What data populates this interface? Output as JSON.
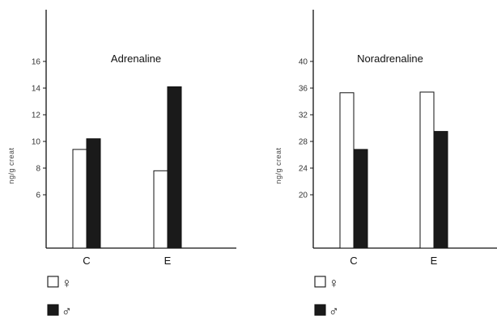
{
  "chart_data": [
    {
      "type": "bar",
      "title": "Adrenaline",
      "ylabel": "ng/g creat",
      "xlabel": "",
      "categories": [
        "C",
        "E"
      ],
      "yticks": [
        6,
        8,
        10,
        12,
        14,
        16
      ],
      "ylim": [
        0,
        20
      ],
      "series": [
        {
          "name": "♀",
          "values": [
            9.4,
            7.8
          ]
        },
        {
          "name": "♂",
          "values": [
            10.2,
            14.1
          ]
        }
      ],
      "grid": false
    },
    {
      "type": "bar",
      "title": "Noradrenaline",
      "ylabel": "ng/g creat",
      "xlabel": "",
      "categories": [
        "C",
        "E"
      ],
      "yticks": [
        20,
        24,
        28,
        32,
        36,
        40
      ],
      "ylim": [
        12,
        48
      ],
      "series": [
        {
          "name": "♀",
          "values": [
            35.3,
            35.4
          ]
        },
        {
          "name": "♂",
          "values": [
            26.8,
            29.5
          ]
        }
      ],
      "grid": false
    }
  ],
  "legend": [
    {
      "symbol": "♀",
      "fill": "#ffffff"
    },
    {
      "symbol": "♂",
      "fill": "#1a1a1a"
    }
  ],
  "colors": {
    "female": "#ffffff",
    "male": "#1a1a1a",
    "axis": "#111111"
  }
}
